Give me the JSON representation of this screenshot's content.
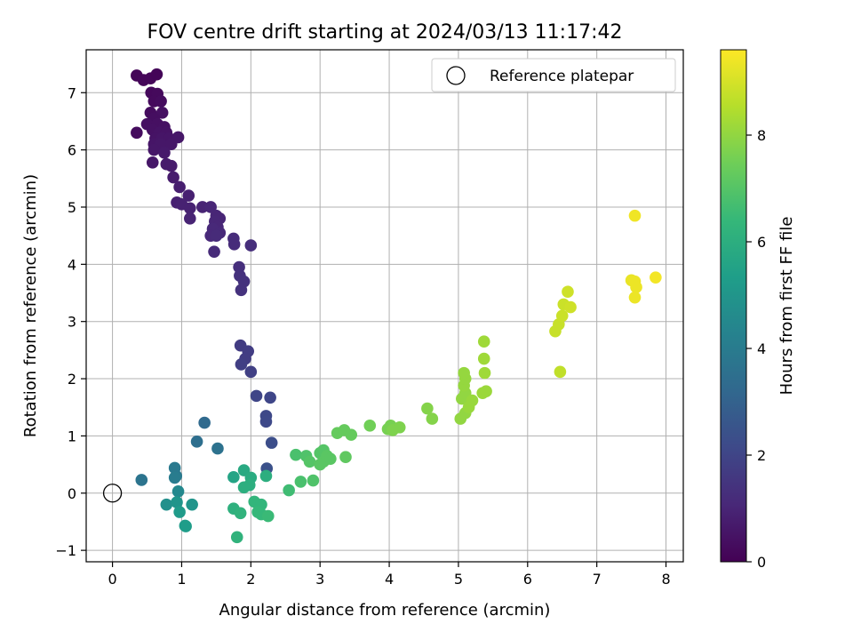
{
  "chart_data": {
    "type": "scatter",
    "title": "FOV centre drift starting at 2024/03/13 11:17:42",
    "xlabel": "Angular distance from reference (arcmin)",
    "ylabel": "Rotation from reference (arcmin)",
    "xlim": [
      -0.38,
      8.25
    ],
    "ylim": [
      -1.2,
      7.75
    ],
    "xticks": [
      0,
      1,
      2,
      3,
      4,
      5,
      6,
      7,
      8
    ],
    "yticks": [
      -1,
      0,
      1,
      2,
      3,
      4,
      5,
      6,
      7
    ],
    "grid": true,
    "legend": {
      "position": "top-right",
      "entries": [
        {
          "label": "Reference platepar",
          "marker": "open-circle"
        }
      ]
    },
    "reference_point": {
      "x": 0,
      "y": 0
    },
    "colorbar": {
      "label": "Hours from first FF file",
      "range": [
        0,
        9.6
      ],
      "ticks": [
        0,
        2,
        4,
        6,
        8
      ],
      "colormap": "viridis",
      "stops": [
        "#440154",
        "#482878",
        "#3e4989",
        "#31688e",
        "#26828e",
        "#1f9e89",
        "#35b779",
        "#6ece58",
        "#b5de2b",
        "#fde725"
      ]
    },
    "points": [
      {
        "x": 0.35,
        "y": 7.3,
        "c": 0.1
      },
      {
        "x": 0.45,
        "y": 7.22,
        "c": 0.15
      },
      {
        "x": 0.55,
        "y": 7.25,
        "c": 0.15
      },
      {
        "x": 0.64,
        "y": 7.32,
        "c": 0.12
      },
      {
        "x": 0.56,
        "y": 7.0,
        "c": 0.2
      },
      {
        "x": 0.65,
        "y": 6.98,
        "c": 0.25
      },
      {
        "x": 0.6,
        "y": 6.85,
        "c": 0.25
      },
      {
        "x": 0.7,
        "y": 6.85,
        "c": 0.3
      },
      {
        "x": 0.55,
        "y": 6.65,
        "c": 0.3
      },
      {
        "x": 0.72,
        "y": 6.65,
        "c": 0.4
      },
      {
        "x": 0.6,
        "y": 6.55,
        "c": 0.35
      },
      {
        "x": 0.5,
        "y": 6.45,
        "c": 0.4
      },
      {
        "x": 0.65,
        "y": 6.45,
        "c": 0.4
      },
      {
        "x": 0.75,
        "y": 6.4,
        "c": 0.45
      },
      {
        "x": 0.58,
        "y": 6.35,
        "c": 0.45
      },
      {
        "x": 0.68,
        "y": 6.3,
        "c": 0.5
      },
      {
        "x": 0.78,
        "y": 6.3,
        "c": 0.5
      },
      {
        "x": 0.35,
        "y": 6.3,
        "c": 0.3
      },
      {
        "x": 0.62,
        "y": 6.2,
        "c": 0.5
      },
      {
        "x": 0.72,
        "y": 6.2,
        "c": 0.55
      },
      {
        "x": 0.82,
        "y": 6.2,
        "c": 0.55
      },
      {
        "x": 0.95,
        "y": 6.22,
        "c": 0.6
      },
      {
        "x": 0.6,
        "y": 6.1,
        "c": 0.55
      },
      {
        "x": 0.7,
        "y": 6.1,
        "c": 0.6
      },
      {
        "x": 0.85,
        "y": 6.1,
        "c": 0.6
      },
      {
        "x": 0.6,
        "y": 6.0,
        "c": 0.6
      },
      {
        "x": 0.75,
        "y": 5.95,
        "c": 0.65
      },
      {
        "x": 0.58,
        "y": 5.78,
        "c": 0.6
      },
      {
        "x": 0.78,
        "y": 5.75,
        "c": 0.7
      },
      {
        "x": 0.85,
        "y": 5.72,
        "c": 0.7
      },
      {
        "x": 0.88,
        "y": 5.52,
        "c": 0.75
      },
      {
        "x": 0.97,
        "y": 5.35,
        "c": 0.8
      },
      {
        "x": 1.1,
        "y": 5.2,
        "c": 0.85
      },
      {
        "x": 0.93,
        "y": 5.08,
        "c": 0.85
      },
      {
        "x": 1.0,
        "y": 5.05,
        "c": 0.9
      },
      {
        "x": 1.12,
        "y": 4.98,
        "c": 0.9
      },
      {
        "x": 1.3,
        "y": 5.0,
        "c": 0.95
      },
      {
        "x": 1.42,
        "y": 5.0,
        "c": 1.0
      },
      {
        "x": 1.12,
        "y": 4.8,
        "c": 0.95
      },
      {
        "x": 1.5,
        "y": 4.85,
        "c": 1.0
      },
      {
        "x": 1.55,
        "y": 4.8,
        "c": 1.0
      },
      {
        "x": 1.48,
        "y": 4.75,
        "c": 1.05
      },
      {
        "x": 1.52,
        "y": 4.65,
        "c": 1.05
      },
      {
        "x": 1.45,
        "y": 4.62,
        "c": 1.1
      },
      {
        "x": 1.55,
        "y": 4.55,
        "c": 1.1
      },
      {
        "x": 1.42,
        "y": 4.5,
        "c": 1.1
      },
      {
        "x": 1.5,
        "y": 4.5,
        "c": 1.15
      },
      {
        "x": 1.75,
        "y": 4.45,
        "c": 1.2
      },
      {
        "x": 1.76,
        "y": 4.35,
        "c": 1.2
      },
      {
        "x": 2.0,
        "y": 4.33,
        "c": 1.25
      },
      {
        "x": 1.47,
        "y": 4.22,
        "c": 1.15
      },
      {
        "x": 1.83,
        "y": 3.95,
        "c": 1.3
      },
      {
        "x": 1.84,
        "y": 3.8,
        "c": 1.35
      },
      {
        "x": 1.9,
        "y": 3.7,
        "c": 1.4
      },
      {
        "x": 1.86,
        "y": 3.55,
        "c": 1.4
      },
      {
        "x": 1.85,
        "y": 2.58,
        "c": 1.7
      },
      {
        "x": 1.96,
        "y": 2.48,
        "c": 1.75
      },
      {
        "x": 1.92,
        "y": 2.35,
        "c": 1.75
      },
      {
        "x": 1.86,
        "y": 2.25,
        "c": 1.8
      },
      {
        "x": 2.0,
        "y": 2.12,
        "c": 1.85
      },
      {
        "x": 2.08,
        "y": 1.7,
        "c": 2.0
      },
      {
        "x": 2.28,
        "y": 1.67,
        "c": 2.05
      },
      {
        "x": 2.22,
        "y": 1.35,
        "c": 2.1
      },
      {
        "x": 2.22,
        "y": 1.25,
        "c": 2.15
      },
      {
        "x": 2.3,
        "y": 0.88,
        "c": 2.3
      },
      {
        "x": 2.23,
        "y": 0.43,
        "c": 2.4
      },
      {
        "x": 1.33,
        "y": 1.23,
        "c": 3.3
      },
      {
        "x": 1.22,
        "y": 0.9,
        "c": 3.5
      },
      {
        "x": 1.52,
        "y": 0.78,
        "c": 3.6
      },
      {
        "x": 0.42,
        "y": 0.23,
        "c": 3.7
      },
      {
        "x": 0.9,
        "y": 0.44,
        "c": 3.9
      },
      {
        "x": 0.92,
        "y": 0.3,
        "c": 3.9
      },
      {
        "x": 0.9,
        "y": 0.27,
        "c": 4.0
      },
      {
        "x": 0.95,
        "y": 0.03,
        "c": 4.5
      },
      {
        "x": 0.78,
        "y": -0.2,
        "c": 4.8
      },
      {
        "x": 0.93,
        "y": -0.16,
        "c": 5.0
      },
      {
        "x": 1.15,
        "y": -0.2,
        "c": 5.0
      },
      {
        "x": 0.97,
        "y": -0.33,
        "c": 5.2
      },
      {
        "x": 1.05,
        "y": -0.57,
        "c": 5.2
      },
      {
        "x": 1.06,
        "y": -0.58,
        "c": 5.3
      },
      {
        "x": 1.75,
        "y": 0.28,
        "c": 5.6
      },
      {
        "x": 1.9,
        "y": 0.4,
        "c": 5.8
      },
      {
        "x": 2.0,
        "y": 0.27,
        "c": 5.9
      },
      {
        "x": 1.98,
        "y": 0.14,
        "c": 6.0
      },
      {
        "x": 1.9,
        "y": 0.1,
        "c": 6.0
      },
      {
        "x": 2.22,
        "y": 0.3,
        "c": 6.0
      },
      {
        "x": 1.75,
        "y": -0.27,
        "c": 6.1
      },
      {
        "x": 1.85,
        "y": -0.35,
        "c": 6.2
      },
      {
        "x": 1.8,
        "y": -0.77,
        "c": 6.2
      },
      {
        "x": 2.05,
        "y": -0.15,
        "c": 6.3
      },
      {
        "x": 2.15,
        "y": -0.2,
        "c": 6.3
      },
      {
        "x": 2.1,
        "y": -0.33,
        "c": 6.4
      },
      {
        "x": 2.15,
        "y": -0.37,
        "c": 6.4
      },
      {
        "x": 2.25,
        "y": -0.4,
        "c": 6.5
      },
      {
        "x": 2.55,
        "y": 0.05,
        "c": 6.6
      },
      {
        "x": 2.65,
        "y": 0.67,
        "c": 6.8
      },
      {
        "x": 2.72,
        "y": 0.2,
        "c": 6.8
      },
      {
        "x": 2.8,
        "y": 0.65,
        "c": 6.9
      },
      {
        "x": 2.85,
        "y": 0.55,
        "c": 7.0
      },
      {
        "x": 2.9,
        "y": 0.22,
        "c": 6.9
      },
      {
        "x": 3.0,
        "y": 0.7,
        "c": 7.0
      },
      {
        "x": 3.05,
        "y": 0.75,
        "c": 7.0
      },
      {
        "x": 3.05,
        "y": 0.55,
        "c": 7.1
      },
      {
        "x": 3.1,
        "y": 0.65,
        "c": 7.1
      },
      {
        "x": 3.15,
        "y": 0.6,
        "c": 7.1
      },
      {
        "x": 3.0,
        "y": 0.5,
        "c": 7.1
      },
      {
        "x": 3.25,
        "y": 1.05,
        "c": 7.3
      },
      {
        "x": 3.35,
        "y": 1.1,
        "c": 7.3
      },
      {
        "x": 3.45,
        "y": 1.02,
        "c": 7.3
      },
      {
        "x": 3.37,
        "y": 0.63,
        "c": 7.2
      },
      {
        "x": 3.72,
        "y": 1.18,
        "c": 7.5
      },
      {
        "x": 3.98,
        "y": 1.12,
        "c": 7.6
      },
      {
        "x": 4.02,
        "y": 1.18,
        "c": 7.6
      },
      {
        "x": 4.05,
        "y": 1.1,
        "c": 7.7
      },
      {
        "x": 4.15,
        "y": 1.15,
        "c": 7.7
      },
      {
        "x": 4.55,
        "y": 1.48,
        "c": 7.8
      },
      {
        "x": 4.62,
        "y": 1.3,
        "c": 7.8
      },
      {
        "x": 5.03,
        "y": 1.3,
        "c": 8.0
      },
      {
        "x": 5.1,
        "y": 1.4,
        "c": 8.0
      },
      {
        "x": 5.05,
        "y": 1.65,
        "c": 8.0
      },
      {
        "x": 5.1,
        "y": 1.75,
        "c": 8.0
      },
      {
        "x": 5.08,
        "y": 1.88,
        "c": 8.05
      },
      {
        "x": 5.1,
        "y": 2.0,
        "c": 8.05
      },
      {
        "x": 5.08,
        "y": 2.1,
        "c": 8.05
      },
      {
        "x": 5.15,
        "y": 1.5,
        "c": 8.1
      },
      {
        "x": 5.2,
        "y": 1.62,
        "c": 8.1
      },
      {
        "x": 5.35,
        "y": 1.75,
        "c": 8.15
      },
      {
        "x": 5.4,
        "y": 1.78,
        "c": 8.15
      },
      {
        "x": 5.38,
        "y": 2.1,
        "c": 8.2
      },
      {
        "x": 5.37,
        "y": 2.35,
        "c": 8.2
      },
      {
        "x": 5.37,
        "y": 2.65,
        "c": 8.2
      },
      {
        "x": 6.4,
        "y": 2.83,
        "c": 8.8
      },
      {
        "x": 6.45,
        "y": 2.95,
        "c": 8.8
      },
      {
        "x": 6.5,
        "y": 3.1,
        "c": 8.85
      },
      {
        "x": 6.52,
        "y": 3.3,
        "c": 8.85
      },
      {
        "x": 6.58,
        "y": 3.52,
        "c": 8.9
      },
      {
        "x": 6.62,
        "y": 3.25,
        "c": 8.9
      },
      {
        "x": 6.47,
        "y": 2.12,
        "c": 8.7
      },
      {
        "x": 7.5,
        "y": 3.72,
        "c": 9.3
      },
      {
        "x": 7.55,
        "y": 3.7,
        "c": 9.35
      },
      {
        "x": 7.57,
        "y": 3.6,
        "c": 9.35
      },
      {
        "x": 7.55,
        "y": 3.42,
        "c": 9.35
      },
      {
        "x": 7.85,
        "y": 3.77,
        "c": 9.45
      },
      {
        "x": 7.55,
        "y": 4.85,
        "c": 9.4
      }
    ]
  }
}
